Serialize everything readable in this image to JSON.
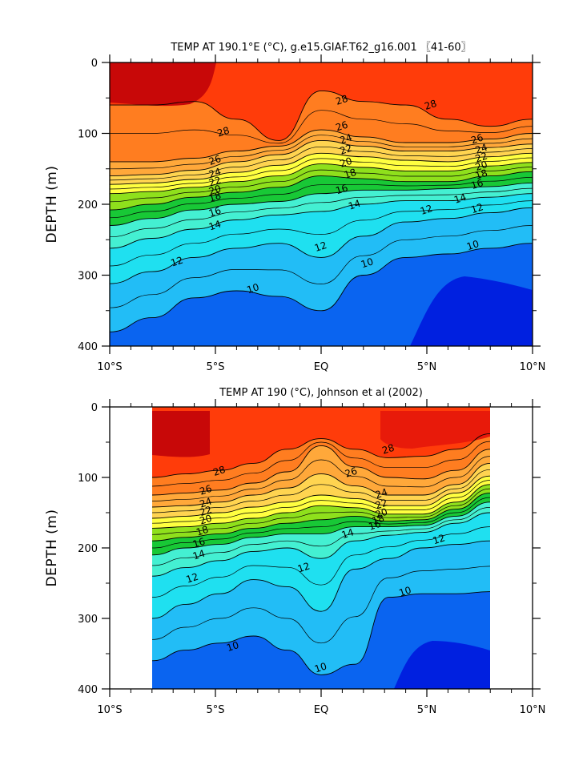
{
  "chart_data": [
    {
      "type": "contour",
      "title": "TEMP AT 190.1°E (°C), g.e15.GIAF.T62_g16.001 〖41-60〗",
      "ylabel": "DEPTH (m)",
      "xlabel": "",
      "x_ticks": [
        "10°S",
        "5°S",
        "EQ",
        "5°N",
        "10°N"
      ],
      "y_ticks": [
        "0",
        "100",
        "200",
        "300",
        "400"
      ],
      "xlim": [
        -10,
        10
      ],
      "ylim": [
        400,
        0
      ],
      "y_reversed": true,
      "contour_interval": 1,
      "colormap": [
        "#0020e0",
        "#0a64f0",
        "#1596f5",
        "#22bdf6",
        "#1fe0f0",
        "#44f0d2",
        "#28d57e",
        "#18c836",
        "#8fe01c",
        "#ffff40",
        "#ffd450",
        "#ffa83a",
        "#ff7d20",
        "#ff3c0a",
        "#e81a0a",
        "#c80808"
      ],
      "isotherms": [
        {
          "temp": 28,
          "depth": [
            60,
            60,
            55,
            80,
            110,
            40,
            55,
            60,
            80,
            90,
            80
          ]
        },
        {
          "temp": 26,
          "depth": [
            140,
            140,
            135,
            125,
            118,
            95,
            105,
            113,
            113,
            108,
            100
          ]
        },
        {
          "temp": 24,
          "depth": [
            160,
            158,
            152,
            140,
            130,
            110,
            118,
            125,
            125,
            120,
            115
          ]
        },
        {
          "temp": 22,
          "depth": [
            172,
            170,
            165,
            155,
            145,
            128,
            133,
            138,
            140,
            133,
            128
          ]
        },
        {
          "temp": 20,
          "depth": [
            185,
            182,
            176,
            168,
            160,
            143,
            148,
            153,
            153,
            146,
            141
          ]
        },
        {
          "temp": 18,
          "depth": [
            208,
            200,
            190,
            183,
            176,
            160,
            164,
            168,
            168,
            160,
            154
          ]
        },
        {
          "temp": 16,
          "depth": [
            230,
            220,
            208,
            200,
            196,
            185,
            180,
            180,
            178,
            175,
            170
          ]
        },
        {
          "temp": 14,
          "depth": [
            262,
            248,
            235,
            222,
            215,
            210,
            200,
            195,
            195,
            190,
            185
          ]
        },
        {
          "temp": 12,
          "depth": [
            312,
            295,
            275,
            262,
            255,
            275,
            245,
            225,
            220,
            212,
            205
          ]
        },
        {
          "temp": 10,
          "depth": [
            380,
            360,
            332,
            322,
            330,
            350,
            300,
            275,
            270,
            262,
            255
          ]
        }
      ],
      "contour_labels": [
        "28",
        "28",
        "28",
        "26",
        "26",
        "26",
        "24",
        "24",
        "24",
        "22",
        "22",
        "22",
        "20",
        "20",
        "20",
        "18",
        "18",
        "18",
        "16",
        "16",
        "16",
        "14",
        "14",
        "14",
        "12",
        "12",
        "12",
        "12",
        "10",
        "10",
        "10"
      ]
    },
    {
      "type": "contour",
      "title": "TEMP AT 190 (°C), Johnson et al (2002)",
      "ylabel": "DEPTH (m)",
      "xlabel": "",
      "x_ticks": [
        "10°S",
        "5°S",
        "EQ",
        "5°N",
        "10°N"
      ],
      "y_ticks": [
        "0",
        "100",
        "200",
        "300",
        "400"
      ],
      "xlim": [
        -10,
        10
      ],
      "ylim": [
        400,
        0
      ],
      "y_reversed": true,
      "data_xrange": [
        -8,
        8
      ],
      "contour_interval": 1,
      "colormap": [
        "#0020e0",
        "#0a64f0",
        "#1596f5",
        "#22bdf6",
        "#1fe0f0",
        "#44f0d2",
        "#28d57e",
        "#18c836",
        "#8fe01c",
        "#ffff40",
        "#ffd450",
        "#ffa83a",
        "#ff7d20",
        "#ff3c0a",
        "#e81a0a",
        "#c80808"
      ],
      "isotherms": [
        {
          "temp": 28,
          "depth": [
            100,
            95,
            90,
            80,
            60,
            45,
            60,
            72,
            70,
            60,
            38
          ]
        },
        {
          "temp": 26,
          "depth": [
            125,
            122,
            118,
            108,
            92,
            55,
            85,
            100,
            102,
            90,
            60
          ]
        },
        {
          "temp": 24,
          "depth": [
            142,
            140,
            135,
            125,
            115,
            95,
            112,
            125,
            125,
            110,
            80
          ]
        },
        {
          "temp": 22,
          "depth": [
            158,
            155,
            150,
            142,
            135,
            125,
            130,
            140,
            140,
            122,
            98
          ]
        },
        {
          "temp": 20,
          "depth": [
            172,
            170,
            165,
            158,
            150,
            140,
            143,
            152,
            152,
            135,
            110
          ]
        },
        {
          "temp": 18,
          "depth": [
            190,
            185,
            180,
            172,
            165,
            160,
            155,
            162,
            160,
            145,
            122
          ]
        },
        {
          "temp": 16,
          "depth": [
            210,
            200,
            195,
            185,
            180,
            180,
            170,
            170,
            168,
            155,
            135
          ]
        },
        {
          "temp": 14,
          "depth": [
            240,
            228,
            218,
            205,
            200,
            215,
            190,
            182,
            178,
            165,
            150
          ]
        },
        {
          "temp": 12,
          "depth": [
            300,
            280,
            265,
            245,
            255,
            290,
            230,
            215,
            200,
            195,
            190
          ]
        },
        {
          "temp": 10,
          "depth": [
            360,
            345,
            335,
            325,
            345,
            380,
            365,
            270,
            265,
            265,
            262
          ]
        }
      ],
      "contour_labels": [
        "28",
        "28",
        "26",
        "26",
        "24",
        "24",
        "22",
        "22",
        "20",
        "20",
        "18",
        "18",
        "16",
        "16",
        "14",
        "14",
        "12",
        "12",
        "12",
        "10",
        "10",
        "10"
      ]
    }
  ]
}
